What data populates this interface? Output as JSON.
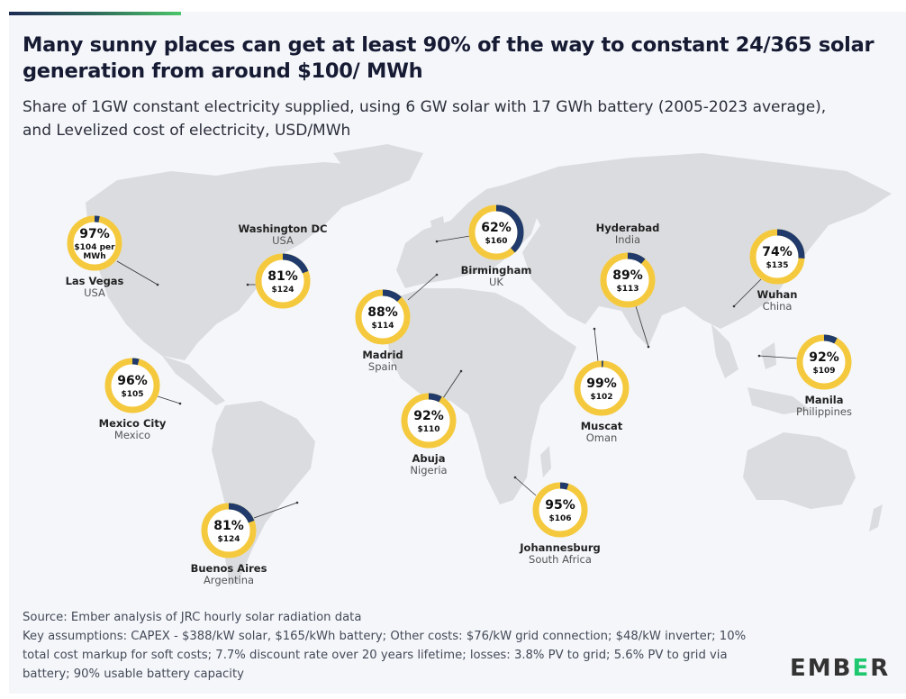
{
  "title": "Many sunny places can get at least 90% of the way to constant 24/365 solar generation from around $100/ MWh",
  "subtitle": "Share of 1GW constant electricity supplied, using 6 GW solar with 17 GWh battery (2005-2023 average), and Levelized cost of electricity, USD/MWh",
  "colors": {
    "share": "#f5c93e",
    "remaining": "#1f3a6b",
    "land": "#dadcdf",
    "background": "#f4f6fa"
  },
  "chart_data": {
    "type": "donut-map",
    "title": "Many sunny places can get at least 90% of the way to constant 24/365 solar generation from around $100/ MWh",
    "cities": [
      {
        "city": "Las Vegas",
        "country": "USA",
        "share_pct": 97,
        "share_label": "97%",
        "cost_label": "$104 per MWh",
        "cost": 104
      },
      {
        "city": "Washington DC",
        "country": "USA",
        "share_pct": 81,
        "share_label": "81%",
        "cost_label": "$124",
        "cost": 124
      },
      {
        "city": "Mexico City",
        "country": "Mexico",
        "share_pct": 96,
        "share_label": "96%",
        "cost_label": "$105",
        "cost": 105
      },
      {
        "city": "Buenos Aires",
        "country": "Argentina",
        "share_pct": 81,
        "share_label": "81%",
        "cost_label": "$124",
        "cost": 124
      },
      {
        "city": "Madrid",
        "country": "Spain",
        "share_pct": 88,
        "share_label": "88%",
        "cost_label": "$114",
        "cost": 114
      },
      {
        "city": "Birmingham",
        "country": "UK",
        "share_pct": 62,
        "share_label": "62%",
        "cost_label": "$160",
        "cost": 160
      },
      {
        "city": "Abuja",
        "country": "Nigeria",
        "share_pct": 92,
        "share_label": "92%",
        "cost_label": "$110",
        "cost": 110
      },
      {
        "city": "Johannesburg",
        "country": "South Africa",
        "share_pct": 95,
        "share_label": "95%",
        "cost_label": "$106",
        "cost": 106
      },
      {
        "city": "Muscat",
        "country": "Oman",
        "share_pct": 99,
        "share_label": "99%",
        "cost_label": "$102",
        "cost": 102
      },
      {
        "city": "Hyderabad",
        "country": "India",
        "share_pct": 89,
        "share_label": "89%",
        "cost_label": "$113",
        "cost": 113
      },
      {
        "city": "Wuhan",
        "country": "China",
        "share_pct": 74,
        "share_label": "74%",
        "cost_label": "$135",
        "cost": 135
      },
      {
        "city": "Manila",
        "country": "Philippines",
        "share_pct": 92,
        "share_label": "92%",
        "cost_label": "$109",
        "cost": 109
      }
    ]
  },
  "footer": {
    "source": "Source: Ember analysis of JRC hourly solar radiation data",
    "assumptions": "Key assumptions: CAPEX - $388/kW solar, $165/kWh battery; Other costs: $76/kW grid connection; $48/kW inverter; 10% total cost markup for soft costs; 7.7% discount rate over 20 years lifetime; losses: 3.8% PV to grid; 5.6% PV to grid via battery; 90% usable battery capacity"
  },
  "logo": {
    "pre": "EMB",
    "e": "E",
    "post": "R"
  }
}
